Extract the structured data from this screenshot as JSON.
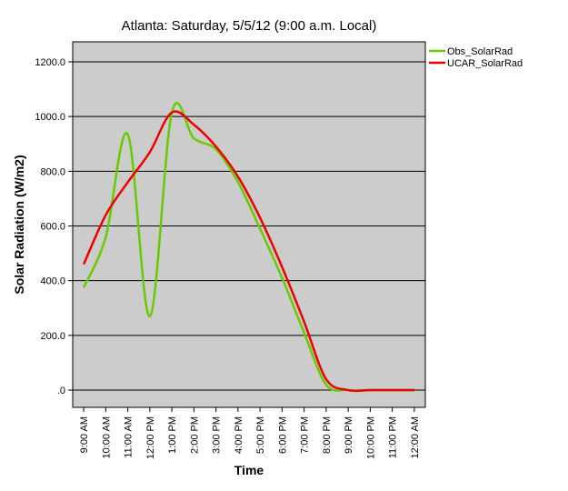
{
  "chart_data": {
    "type": "line",
    "title": "Atlanta: Saturday, 5/5/12 (9:00 a.m. Local)",
    "x_label": "Time",
    "y_label": "Solar Radiation (W/m2)",
    "categories": [
      "9:00 AM",
      "10:00 AM",
      "11:00 AM",
      "12:00 PM",
      "1:00 PM",
      "2:00 PM",
      "3:00 PM",
      "4:00 PM",
      "5:00 PM",
      "6:00 PM",
      "7:00 PM",
      "8:00 PM",
      "9:00 PM",
      "10:00 PM",
      "11:00 PM",
      "12:00 AM"
    ],
    "series": [
      {
        "name": "Obs_SolarRad",
        "color": "#66cc00",
        "values": [
          375,
          560,
          935,
          270,
          1015,
          920,
          880,
          760,
          590,
          410,
          210,
          20,
          0,
          0,
          0,
          0
        ]
      },
      {
        "name": "UCAR_SolarRad",
        "color": "#ee0000",
        "values": [
          460,
          640,
          760,
          870,
          1015,
          970,
          890,
          780,
          630,
          450,
          250,
          40,
          0,
          0,
          0,
          0
        ]
      }
    ],
    "ylim": [
      -63,
      1273
    ],
    "yticks": [
      {
        "value": 0,
        "label": ".0"
      },
      {
        "value": 200,
        "label": "200.0"
      },
      {
        "value": 400,
        "label": "400.0"
      },
      {
        "value": 600,
        "label": "600.0"
      },
      {
        "value": 800,
        "label": "800.0"
      },
      {
        "value": 1000,
        "label": "1000.0"
      },
      {
        "value": 1200,
        "label": "1200.0"
      }
    ],
    "grid": true,
    "background": "#cccccc",
    "legend": "right"
  }
}
